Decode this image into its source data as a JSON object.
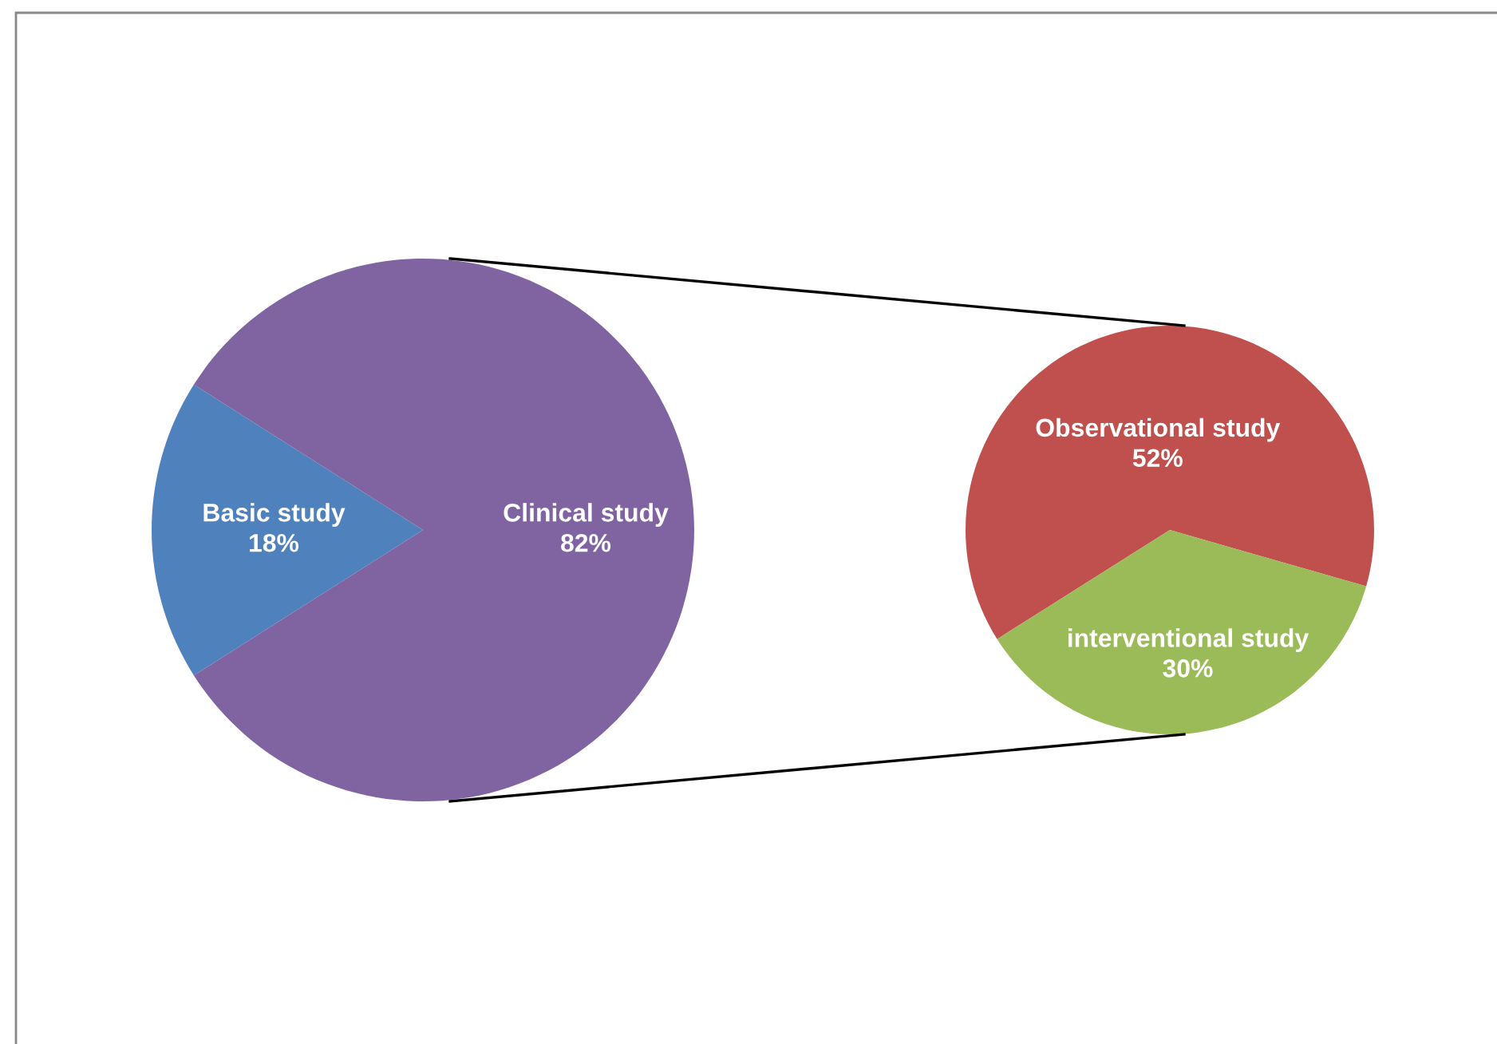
{
  "chart_data": [
    {
      "type": "pie",
      "categories": [
        "Basic study",
        "Clinical study"
      ],
      "values": [
        18,
        82
      ],
      "colors": [
        "#4f81bd",
        "#8064a2"
      ],
      "value_labels": [
        "18%",
        "82%"
      ]
    },
    {
      "type": "pie",
      "categories": [
        "Observational study",
        "interventional study"
      ],
      "values": [
        52,
        30
      ],
      "colors": [
        "#c0504d",
        "#9bbb59"
      ],
      "value_labels": [
        "52%",
        "30%"
      ]
    }
  ]
}
